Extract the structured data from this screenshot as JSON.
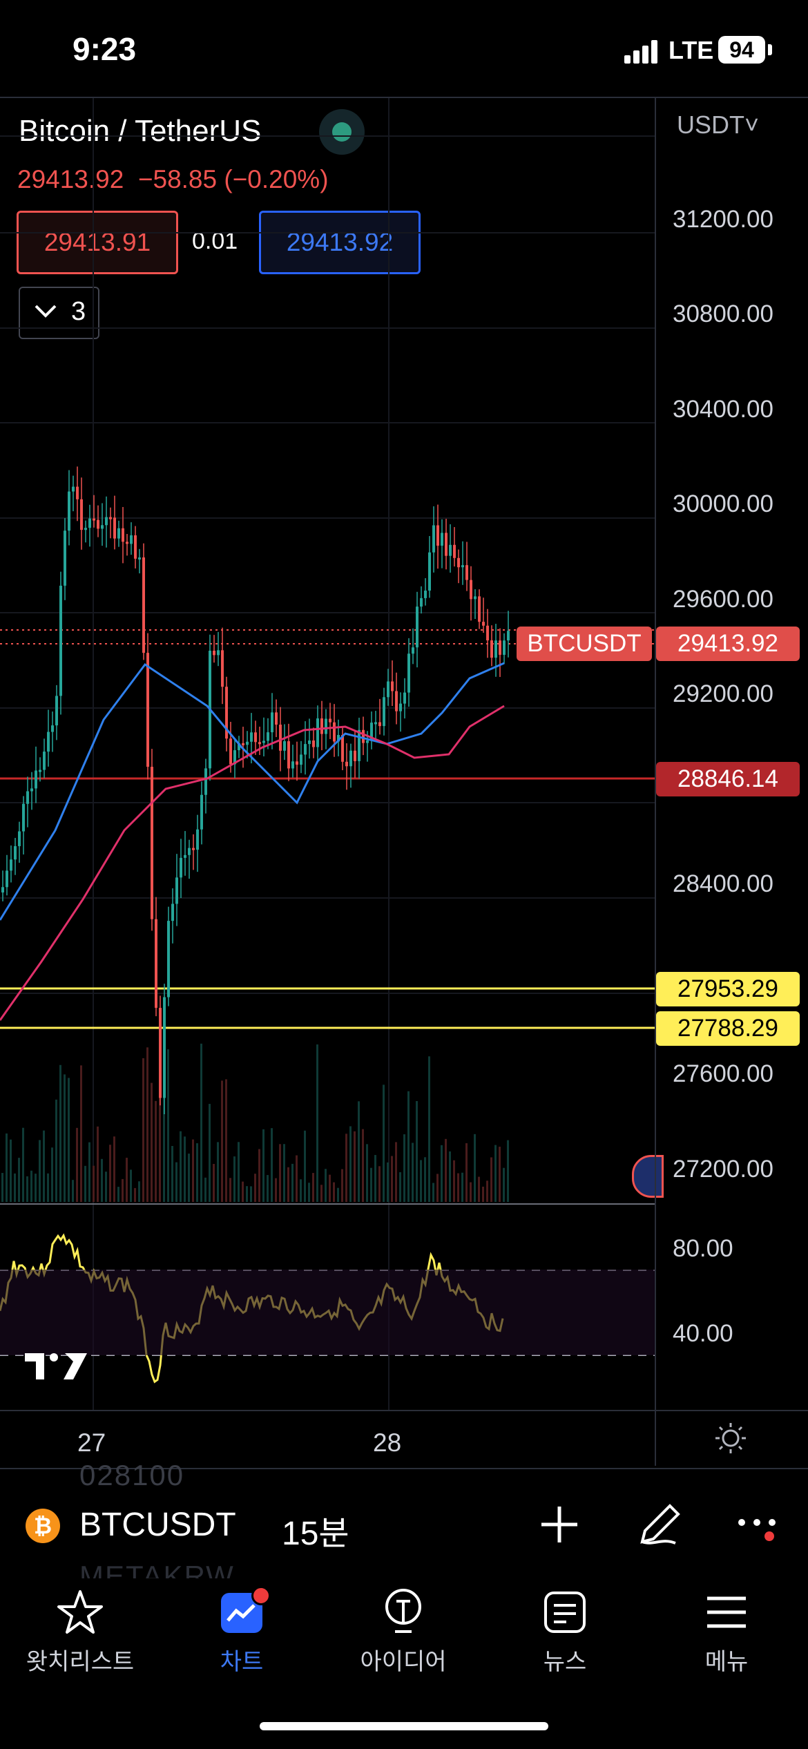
{
  "status_bar": {
    "time": "9:23",
    "network": "LTE",
    "battery": "94"
  },
  "chart": {
    "title": "Bitcoin / TetherUS",
    "price_line": "29413.92  −58.85 (−0.20%)",
    "bid": "29413.91",
    "spread": "0.01",
    "ask": "29413.92",
    "indicator_count": "3",
    "currency": "USDT˅",
    "symbol_tag": "BTCUSDT",
    "last_price_tag": "29413.92",
    "ma_price_tag": "28846.14",
    "level_tag_1": "27953.29",
    "level_tag_2": "27788.29",
    "colors": {
      "up": "#26a69a",
      "down": "#ef5350",
      "ma_fast": "#2f80ed",
      "ma_slow": "#e0306a",
      "level": "#ffee58",
      "rsi": "#ffee58"
    }
  },
  "price_axis": [
    "31200.00",
    "30800.00",
    "30400.00",
    "30000.00",
    "29600.00",
    "29200.00",
    "28400.00",
    "27600.00",
    "27200.00"
  ],
  "rsi_axis": [
    "80.00",
    "40.00"
  ],
  "time_axis": [
    "27",
    "28"
  ],
  "symbol_bar": {
    "symbol": "BTCUSDT",
    "interval": "15분",
    "logo_glyph": "₿",
    "ghost_text_top": "028100",
    "ghost_text_bottom": "METAKRW"
  },
  "tabs": [
    {
      "label": "왓치리스트",
      "icon": "star-icon"
    },
    {
      "label": "차트",
      "icon": "chart-icon",
      "active": true
    },
    {
      "label": "아이디어",
      "icon": "lightbulb-icon"
    },
    {
      "label": "뉴스",
      "icon": "news-icon"
    },
    {
      "label": "메뉴",
      "icon": "menu-icon"
    }
  ]
}
